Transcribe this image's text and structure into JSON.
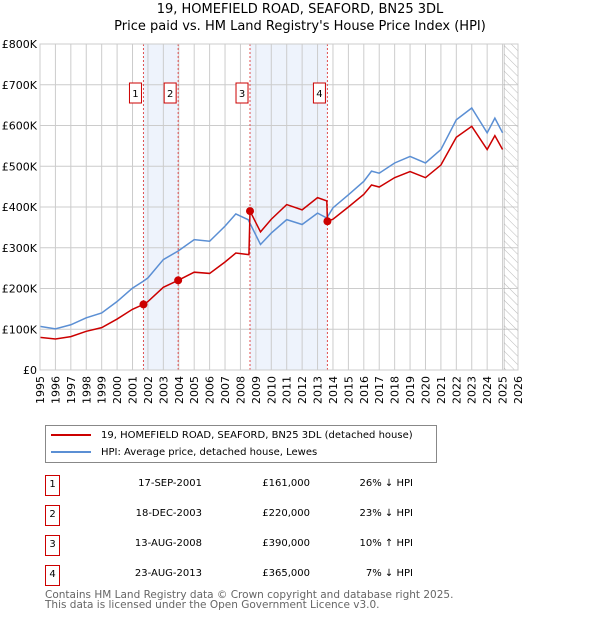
{
  "title_line1": "19, HOMEFIELD ROAD, SEAFORD, BN25 3DL",
  "title_line2": "Price paid vs. HM Land Registry's House Price Index (HPI)",
  "colors": {
    "price": "#cc0000",
    "hpi": "#5b8fd4",
    "shade": "#eef3fc",
    "grid": "#cccccc"
  },
  "chart_data": {
    "type": "line",
    "title": "Price paid vs. HM Land Registry's House Price Index (HPI)",
    "xlim": [
      1995,
      2026
    ],
    "ylim": [
      0,
      800000
    ],
    "x_ticks": [
      "1995",
      "1996",
      "1997",
      "1998",
      "1999",
      "2000",
      "2001",
      "2002",
      "2003",
      "2004",
      "2005",
      "2006",
      "2007",
      "2008",
      "2009",
      "2010",
      "2011",
      "2012",
      "2013",
      "2014",
      "2015",
      "2016",
      "2017",
      "2018",
      "2019",
      "2020",
      "2021",
      "2022",
      "2023",
      "2024",
      "2025",
      "2026"
    ],
    "y_ticks": [
      {
        "v": 0,
        "label": "£0"
      },
      {
        "v": 100000,
        "label": "£100K"
      },
      {
        "v": 200000,
        "label": "£200K"
      },
      {
        "v": 300000,
        "label": "£300K"
      },
      {
        "v": 400000,
        "label": "£400K"
      },
      {
        "v": 500000,
        "label": "£500K"
      },
      {
        "v": 600000,
        "label": "£600K"
      },
      {
        "v": 700000,
        "label": "£700K"
      },
      {
        "v": 800000,
        "label": "£800K"
      }
    ],
    "grid": true,
    "forecast_hatch_from": 2025.1,
    "shaded_ranges": [
      [
        2001.71,
        2003.96
      ],
      [
        2008.62,
        2013.64
      ]
    ],
    "series": [
      {
        "name": "19, HOMEFIELD ROAD, SEAFORD, BN25 3DL (detached house)",
        "color": "#cc0000",
        "x": [
          1995,
          1996,
          1997,
          1998,
          1999,
          2000,
          2001,
          2001.71,
          2002,
          2003,
          2003.96,
          2005,
          2006,
          2007,
          2007.7,
          2008.55,
          2008.62,
          2009.3,
          2010,
          2011,
          2012,
          2013,
          2013.6,
          2013.64,
          2014,
          2015,
          2016,
          2016.5,
          2017,
          2018,
          2019,
          2020,
          2021,
          2022,
          2023,
          2024,
          2024.5,
          2025
        ],
        "y": [
          80000,
          76000,
          82000,
          95000,
          104000,
          125000,
          149000,
          161000,
          168000,
          203000,
          220000,
          240000,
          237000,
          265000,
          287000,
          283000,
          390000,
          339000,
          370000,
          406000,
          393000,
          423000,
          415000,
          365000,
          370000,
          400000,
          431000,
          454000,
          449000,
          472000,
          487000,
          472000,
          503000,
          571000,
          598000,
          541000,
          575000,
          541000
        ]
      },
      {
        "name": "HPI: Average price, detached house, Lewes",
        "color": "#5b8fd4",
        "x": [
          1995,
          1996,
          1997,
          1998,
          1999,
          2000,
          2001,
          2001.71,
          2002,
          2003,
          2003.96,
          2005,
          2006,
          2007,
          2007.7,
          2008.5,
          2009.3,
          2010,
          2011,
          2012,
          2013,
          2013.6,
          2014,
          2015,
          2016,
          2016.5,
          2017,
          2018,
          2019,
          2020,
          2021,
          2022,
          2023,
          2024,
          2024.5,
          2025
        ],
        "y": [
          107000,
          101000,
          111000,
          128000,
          140000,
          168000,
          201000,
          218000,
          226000,
          271000,
          292000,
          320000,
          316000,
          353000,
          383000,
          369000,
          308000,
          336000,
          369000,
          357000,
          385000,
          373000,
          398000,
          430000,
          463000,
          488000,
          483000,
          508000,
          524000,
          508000,
          541000,
          614000,
          643000,
          582000,
          618000,
          582000
        ]
      }
    ],
    "sales": [
      {
        "n": "1",
        "date": "17-SEP-2001",
        "x": 2001.71,
        "price_label": "£161,000",
        "price": 161000,
        "hpi": "26% ↓ HPI"
      },
      {
        "n": "2",
        "date": "18-DEC-2003",
        "x": 2003.96,
        "price_label": "£220,000",
        "price": 220000,
        "hpi": "23% ↓ HPI"
      },
      {
        "n": "3",
        "date": "13-AUG-2008",
        "x": 2008.62,
        "price_label": "£390,000",
        "price": 390000,
        "hpi": "10% ↑ HPI"
      },
      {
        "n": "4",
        "date": "23-AUG-2013",
        "x": 2013.64,
        "price_label": "£365,000",
        "price": 365000,
        "hpi": "7% ↓ HPI"
      }
    ]
  },
  "legend": {
    "price": "19, HOMEFIELD ROAD, SEAFORD, BN25 3DL (detached house)",
    "hpi": "HPI: Average price, detached house, Lewes"
  },
  "footer": {
    "line1": "Contains HM Land Registry data © Crown copyright and database right 2025.",
    "line2": "This data is licensed under the Open Government Licence v3.0."
  }
}
